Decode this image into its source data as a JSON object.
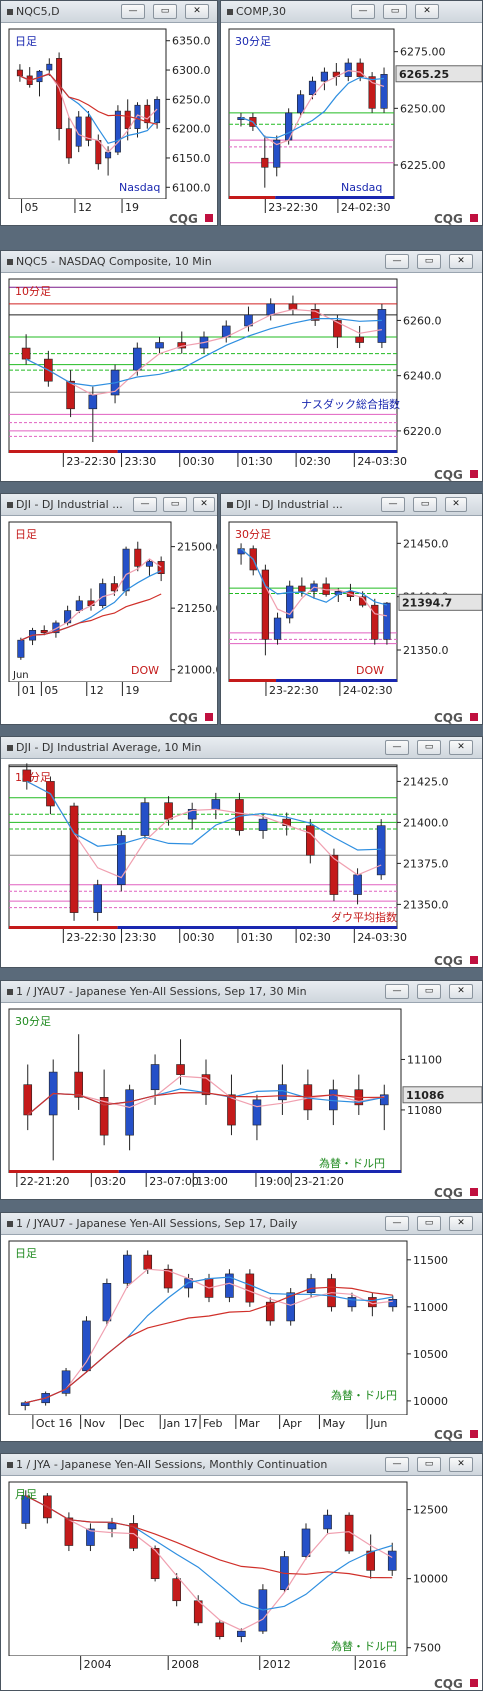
{
  "colors": {
    "up": "#2550c8",
    "down": "#c41a1a",
    "ma_fast": "#f0a0b0",
    "ma_mid": "#2f8fe0",
    "ma_slow": "#d0302a",
    "green": "#22bb22",
    "pink": "#e060c0",
    "frame": "#4a5560"
  },
  "branding": "CQG",
  "panels": [
    {
      "id": "p1",
      "title": "NQC5,D",
      "label": "日足",
      "instrument_label": "Nasdaq",
      "x_labels": [
        "05",
        "12",
        "19"
      ],
      "y_labels": [
        "6350.0",
        "6300.0",
        "6250.0",
        "6200.0",
        "6150.0",
        "6100.0"
      ]
    },
    {
      "id": "p2",
      "title": "COMP,30",
      "label": "30分足",
      "instrument_label": "Nasdaq",
      "x_labels": [
        "23-22:30",
        "24-02:30"
      ],
      "y_labels": [
        "6275.00",
        "6250.00",
        "6225.00"
      ],
      "last_price": "6265.25"
    },
    {
      "id": "p3",
      "title": "NQC5 - NASDAQ Composite, 10 Min",
      "label": "10分足",
      "instrument_label": "ナスダック総合指数",
      "x_labels": [
        "23-22:30",
        "23:30",
        "00:30",
        "01:30",
        "02:30",
        "24-03:30"
      ],
      "y_labels": [
        "6260.0",
        "6240.0",
        "6220.0"
      ]
    },
    {
      "id": "p4",
      "title": "DJI - DJ Industrial ...",
      "label": "日足",
      "instrument_label": "DOW",
      "x_labels": [
        "01",
        "05",
        "12",
        "19"
      ],
      "x_month": "Jun",
      "y_labels": [
        "21500.0",
        "21250.0",
        "21000.0"
      ]
    },
    {
      "id": "p5",
      "title": "DJI - DJ Industrial ...",
      "label": "30分足",
      "instrument_label": "DOW",
      "x_labels": [
        "23-22:30",
        "24-02:30"
      ],
      "y_labels": [
        "21450.0",
        "21400.0",
        "21350.0"
      ],
      "last_price": "21394.7"
    },
    {
      "id": "p6",
      "title": "DJI - DJ Industrial Average, 10 Min",
      "label": "10分足",
      "instrument_label": "ダウ平均指数",
      "x_labels": [
        "23-22:30",
        "23:30",
        "00:30",
        "01:30",
        "02:30",
        "24-03:30"
      ],
      "y_labels": [
        "21425.0",
        "21400.0",
        "21375.0",
        "21350.0"
      ]
    },
    {
      "id": "p7",
      "title": "1 / JYAU7 - Japanese Yen-All Sessions, Sep 17, 30 Min",
      "label": "30分足",
      "instrument_label": "為替・ドル円",
      "x_labels": [
        "22-21:20",
        "03:20",
        "23-07:00",
        "13:00",
        "19:00",
        "23-21:20"
      ],
      "y_labels": [
        "11100",
        "11080"
      ],
      "last_price": "11086"
    },
    {
      "id": "p8",
      "title": "1 / JYAU7 - Japanese Yen-All Sessions, Sep 17, Daily",
      "label": "日足",
      "instrument_label": "為替・ドル円",
      "x_labels": [
        "Oct 16",
        "Nov",
        "Dec",
        "Jan 17",
        "Feb",
        "Mar",
        "Apr",
        "May",
        "Jun"
      ],
      "y_labels": [
        "11500",
        "11000",
        "10500",
        "10000"
      ]
    },
    {
      "id": "p9",
      "title": "1 / JYA - Japanese Yen-All Sessions, Monthly Continuation",
      "label": "月足",
      "instrument_label": "為替・ドル円",
      "x_labels": [
        "2004",
        "2008",
        "2012",
        "2016"
      ],
      "y_labels": [
        "12500",
        "10000",
        "7500"
      ]
    }
  ],
  "chart_data": [
    {
      "type": "candlestick",
      "panel": "p1",
      "title": "NQC5,D",
      "ylim": [
        6080,
        6370
      ],
      "candles": [
        [
          6300,
          6310,
          6280,
          6290
        ],
        [
          6290,
          6305,
          6270,
          6275
        ],
        [
          6280,
          6300,
          6255,
          6298
        ],
        [
          6300,
          6320,
          6290,
          6310
        ],
        [
          6320,
          6330,
          6180,
          6200
        ],
        [
          6200,
          6220,
          6140,
          6150
        ],
        [
          6170,
          6230,
          6160,
          6220
        ],
        [
          6220,
          6230,
          6170,
          6180
        ],
        [
          6180,
          6190,
          6130,
          6140
        ],
        [
          6150,
          6170,
          6120,
          6160
        ],
        [
          6160,
          6240,
          6155,
          6230
        ],
        [
          6230,
          6250,
          6180,
          6200
        ],
        [
          6200,
          6245,
          6185,
          6240
        ],
        [
          6240,
          6250,
          6200,
          6210
        ],
        [
          6210,
          6255,
          6200,
          6250
        ]
      ]
    },
    {
      "type": "candlestick",
      "panel": "p2",
      "title": "COMP,30",
      "ylim": [
        6210,
        6285
      ],
      "candles": [
        [
          6245,
          6248,
          6242,
          6246
        ],
        [
          6246,
          6248,
          6240,
          6242
        ],
        [
          6228,
          6238,
          6215,
          6224
        ],
        [
          6224,
          6238,
          6220,
          6236
        ],
        [
          6236,
          6250,
          6234,
          6248
        ],
        [
          6248,
          6258,
          6246,
          6256
        ],
        [
          6256,
          6264,
          6254,
          6262
        ],
        [
          6262,
          6268,
          6258,
          6266
        ],
        [
          6266,
          6270,
          6260,
          6264
        ],
        [
          6264,
          6272,
          6262,
          6270
        ],
        [
          6270,
          6272,
          6262,
          6264
        ],
        [
          6264,
          6266,
          6248,
          6250
        ],
        [
          6250,
          6268,
          6248,
          6265
        ]
      ]
    },
    {
      "type": "candlestick",
      "panel": "p3",
      "title": "NQC5 - NASDAQ Composite, 10 Min",
      "ylim": [
        6212,
        6275
      ],
      "candles": [
        [
          6250,
          6255,
          6244,
          6246
        ],
        [
          6246,
          6249,
          6236,
          6238
        ],
        [
          6238,
          6242,
          6225,
          6228
        ],
        [
          6228,
          6236,
          6216,
          6233
        ],
        [
          6233,
          6244,
          6230,
          6242
        ],
        [
          6242,
          6252,
          6240,
          6250
        ],
        [
          6250,
          6254,
          6248,
          6252
        ],
        [
          6252,
          6256,
          6248,
          6250
        ],
        [
          6250,
          6256,
          6248,
          6254
        ],
        [
          6254,
          6260,
          6252,
          6258
        ],
        [
          6258,
          6265,
          6256,
          6262
        ],
        [
          6262,
          6268,
          6260,
          6266
        ],
        [
          6266,
          6269,
          6262,
          6264
        ],
        [
          6264,
          6266,
          6258,
          6260
        ],
        [
          6260,
          6262,
          6250,
          6254
        ],
        [
          6254,
          6258,
          6250,
          6252
        ],
        [
          6252,
          6266,
          6250,
          6264
        ]
      ]
    },
    {
      "type": "candlestick",
      "panel": "p4",
      "title": "DJI - DJ Industrial ...",
      "ylim": [
        20950,
        21600
      ],
      "candles": [
        [
          21050,
          21130,
          21040,
          21120
        ],
        [
          21120,
          21170,
          21100,
          21160
        ],
        [
          21160,
          21180,
          21140,
          21150
        ],
        [
          21150,
          21200,
          21130,
          21190
        ],
        [
          21190,
          21260,
          21180,
          21240
        ],
        [
          21240,
          21300,
          21230,
          21280
        ],
        [
          21280,
          21330,
          21240,
          21260
        ],
        [
          21260,
          21370,
          21250,
          21350
        ],
        [
          21350,
          21380,
          21300,
          21320
        ],
        [
          21320,
          21500,
          21300,
          21490
        ],
        [
          21490,
          21520,
          21400,
          21420
        ],
        [
          21420,
          21450,
          21380,
          21440
        ],
        [
          21440,
          21460,
          21360,
          21390
        ]
      ]
    },
    {
      "type": "candlestick",
      "panel": "p5",
      "title": "DJI - DJ Industrial ...",
      "ylim": [
        21320,
        21470
      ],
      "candles": [
        [
          21440,
          21450,
          21430,
          21445
        ],
        [
          21445,
          21448,
          21420,
          21425
        ],
        [
          21425,
          21430,
          21345,
          21360
        ],
        [
          21360,
          21385,
          21355,
          21380
        ],
        [
          21380,
          21415,
          21375,
          21410
        ],
        [
          21410,
          21418,
          21400,
          21405
        ],
        [
          21405,
          21415,
          21398,
          21412
        ],
        [
          21412,
          21418,
          21400,
          21402
        ],
        [
          21402,
          21408,
          21395,
          21405
        ],
        [
          21405,
          21412,
          21396,
          21400
        ],
        [
          21400,
          21405,
          21390,
          21392
        ],
        [
          21392,
          21398,
          21355,
          21360
        ],
        [
          21360,
          21395,
          21355,
          21394
        ]
      ]
    },
    {
      "type": "candlestick",
      "panel": "p6",
      "title": "DJI - DJ Industrial Average, 10 Min",
      "ylim": [
        21335,
        21435
      ],
      "candles": [
        [
          21432,
          21436,
          21420,
          21425
        ],
        [
          21425,
          21428,
          21405,
          21410
        ],
        [
          21410,
          21412,
          21340,
          21345
        ],
        [
          21345,
          21365,
          21340,
          21362
        ],
        [
          21362,
          21395,
          21358,
          21392
        ],
        [
          21392,
          21415,
          21390,
          21412
        ],
        [
          21412,
          21416,
          21398,
          21402
        ],
        [
          21402,
          21412,
          21396,
          21408
        ],
        [
          21408,
          21418,
          21402,
          21414
        ],
        [
          21414,
          21418,
          21392,
          21395
        ],
        [
          21395,
          21405,
          21390,
          21402
        ],
        [
          21402,
          21406,
          21392,
          21398
        ],
        [
          21398,
          21402,
          21375,
          21380
        ],
        [
          21380,
          21384,
          21352,
          21356
        ],
        [
          21356,
          21372,
          21350,
          21368
        ],
        [
          21368,
          21402,
          21365,
          21398
        ]
      ]
    },
    {
      "type": "candlestick",
      "panel": "p7",
      "title": "1 / JYAU7 - Japanese Yen-All Sessions, Sep 17, 30 Min",
      "ylim": [
        11055,
        11120
      ],
      "candles": [
        [
          11090,
          11098,
          11072,
          11078
        ],
        [
          11078,
          11100,
          11060,
          11095
        ],
        [
          11095,
          11110,
          11080,
          11085
        ],
        [
          11085,
          11096,
          11066,
          11070
        ],
        [
          11070,
          11090,
          11064,
          11088
        ],
        [
          11088,
          11102,
          11082,
          11098
        ],
        [
          11098,
          11108,
          11090,
          11094
        ],
        [
          11094,
          11100,
          11082,
          11086
        ],
        [
          11086,
          11094,
          11070,
          11074
        ],
        [
          11074,
          11086,
          11068,
          11084
        ],
        [
          11084,
          11098,
          11078,
          11090
        ],
        [
          11090,
          11096,
          11076,
          11080
        ],
        [
          11080,
          11092,
          11074,
          11088
        ],
        [
          11088,
          11094,
          11078,
          11082
        ],
        [
          11082,
          11090,
          11072,
          11086
        ]
      ]
    },
    {
      "type": "candlestick",
      "panel": "p8",
      "title": "1 / JYAU7 - Japanese Yen-All Sessions, Sep 17, Daily",
      "ylim": [
        9850,
        11700
      ],
      "candles": [
        [
          9950,
          10000,
          9900,
          9980
        ],
        [
          9980,
          10100,
          9950,
          10080
        ],
        [
          10080,
          10350,
          10050,
          10320
        ],
        [
          10320,
          10900,
          10300,
          10850
        ],
        [
          10850,
          11300,
          10800,
          11250
        ],
        [
          11250,
          11600,
          11200,
          11550
        ],
        [
          11550,
          11600,
          11350,
          11400
        ],
        [
          11400,
          11450,
          11150,
          11200
        ],
        [
          11200,
          11350,
          11100,
          11300
        ],
        [
          11300,
          11350,
          11050,
          11100
        ],
        [
          11100,
          11400,
          11050,
          11350
        ],
        [
          11350,
          11400,
          11000,
          11050
        ],
        [
          11050,
          11100,
          10800,
          10850
        ],
        [
          10850,
          11200,
          10800,
          11150
        ],
        [
          11150,
          11350,
          11100,
          11300
        ],
        [
          11300,
          11350,
          10950,
          11000
        ],
        [
          11000,
          11150,
          10950,
          11100
        ],
        [
          11100,
          11150,
          10900,
          11000
        ],
        [
          11000,
          11120,
          10950,
          11080
        ]
      ]
    },
    {
      "type": "candlestick",
      "panel": "p9",
      "title": "1 / JYA - Japanese Yen-All Sessions, Monthly Continuation",
      "ylim": [
        7200,
        13500
      ],
      "candles": [
        [
          12000,
          13200,
          11800,
          13000
        ],
        [
          13000,
          13100,
          12000,
          12200
        ],
        [
          12200,
          12400,
          11000,
          11200
        ],
        [
          11200,
          12000,
          11000,
          11800
        ],
        [
          11800,
          12200,
          11500,
          12000
        ],
        [
          12000,
          12300,
          11000,
          11100
        ],
        [
          11100,
          11200,
          9900,
          10000
        ],
        [
          10000,
          10200,
          9000,
          9200
        ],
        [
          9200,
          9400,
          8300,
          8400
        ],
        [
          8400,
          8500,
          7800,
          7900
        ],
        [
          7900,
          8200,
          7700,
          8100
        ],
        [
          8100,
          9800,
          8000,
          9600
        ],
        [
          9600,
          11000,
          9500,
          10800
        ],
        [
          10800,
          12000,
          10700,
          11800
        ],
        [
          11800,
          12500,
          11600,
          12300
        ],
        [
          12300,
          12400,
          10900,
          11000
        ],
        [
          11000,
          11600,
          10000,
          10300
        ],
        [
          10300,
          11300,
          10100,
          11000
        ]
      ]
    }
  ]
}
